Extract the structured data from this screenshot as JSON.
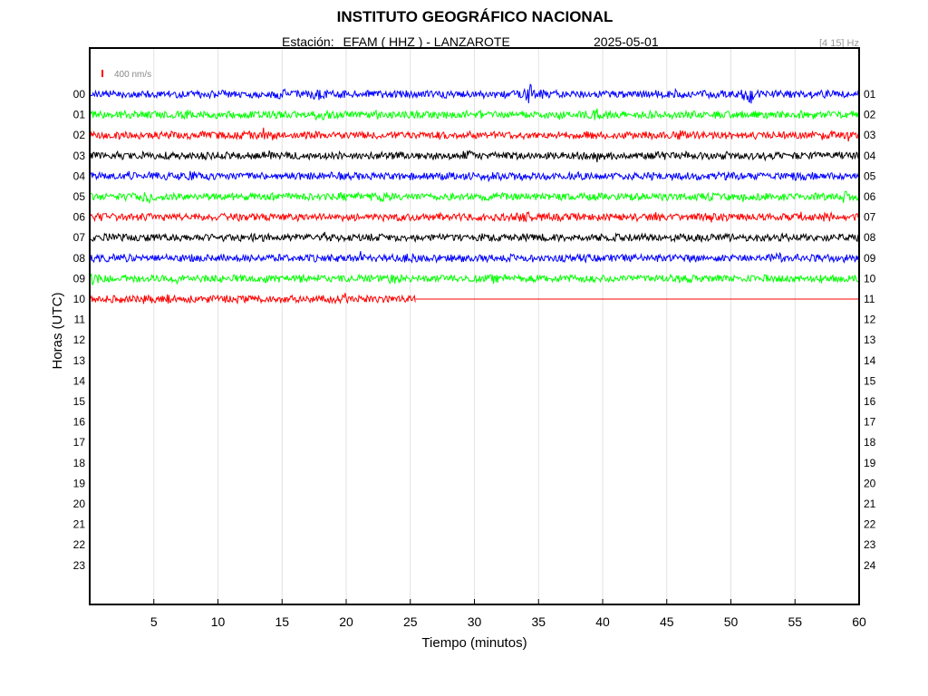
{
  "header": {
    "title": "INSTITUTO GEOGRÁFICO NACIONAL",
    "station_prefix": "Estación:",
    "station": "EFAM ( HHZ ) - LANZAROTE",
    "date": "2025-05-01",
    "filter": "[4 15] Hz"
  },
  "chart_data": {
    "type": "line",
    "title": "INSTITUTO GEOGRÁFICO NACIONAL",
    "xlabel": "Tiempo (minutos)",
    "ylabel": "Horas (UTC)",
    "xlim": [
      0,
      60
    ],
    "x_ticks": [
      5,
      10,
      15,
      20,
      25,
      30,
      35,
      40,
      45,
      50,
      55,
      60
    ],
    "left_hour_labels": [
      "00",
      "01",
      "02",
      "03",
      "04",
      "05",
      "06",
      "07",
      "08",
      "09",
      "10",
      "11",
      "12",
      "13",
      "14",
      "15",
      "16",
      "17",
      "18",
      "19",
      "20",
      "21",
      "22",
      "23"
    ],
    "right_hour_labels": [
      "01",
      "02",
      "03",
      "04",
      "05",
      "06",
      "07",
      "08",
      "09",
      "10",
      "11",
      "12",
      "13",
      "14",
      "15",
      "16",
      "17",
      "18",
      "19",
      "20",
      "21",
      "22",
      "23",
      "24"
    ],
    "scale_bar": {
      "label": "400 nm/s",
      "color": "#ff0000"
    },
    "grid": true,
    "trace_color_cycle": [
      "#0000ff",
      "#00ff00",
      "#ff0000",
      "#000000"
    ],
    "series": [
      {
        "hour": "00",
        "color": "#0000ff",
        "recorded_until_min": 60,
        "bursts": [
          {
            "t": 15,
            "a": 1.6
          },
          {
            "t": 17.8,
            "a": 1.8
          },
          {
            "t": 34.3,
            "a": 2.8
          },
          {
            "t": 51.3,
            "a": 2.2
          }
        ]
      },
      {
        "hour": "01",
        "color": "#00ff00",
        "recorded_until_min": 60,
        "bursts": [
          {
            "t": 18,
            "a": 1.6
          },
          {
            "t": 39.5,
            "a": 2.0
          },
          {
            "t": 7.5,
            "a": 1.3
          }
        ]
      },
      {
        "hour": "02",
        "color": "#ff0000",
        "recorded_until_min": 60,
        "bursts": [
          {
            "t": 14,
            "a": 1.5
          },
          {
            "t": 46,
            "a": 1.4
          },
          {
            "t": 57.5,
            "a": 1.4
          }
        ]
      },
      {
        "hour": "03",
        "color": "#000000",
        "recorded_until_min": 60,
        "bursts": [
          {
            "t": 29.5,
            "a": 1.5
          },
          {
            "t": 44.5,
            "a": 1.4
          }
        ]
      },
      {
        "hour": "04",
        "color": "#0000ff",
        "recorded_until_min": 60,
        "bursts": [
          {
            "t": 7.8,
            "a": 1.6
          },
          {
            "t": 55,
            "a": 1.3
          }
        ]
      },
      {
        "hour": "05",
        "color": "#00ff00",
        "recorded_until_min": 60,
        "bursts": [
          {
            "t": 4.5,
            "a": 2.0
          },
          {
            "t": 23,
            "a": 1.6
          },
          {
            "t": 59,
            "a": 1.8
          }
        ]
      },
      {
        "hour": "06",
        "color": "#ff0000",
        "recorded_until_min": 60,
        "bursts": [
          {
            "t": 1,
            "a": 1.3
          },
          {
            "t": 34,
            "a": 2.0
          },
          {
            "t": 57.5,
            "a": 1.4
          }
        ]
      },
      {
        "hour": "07",
        "color": "#000000",
        "recorded_until_min": 60,
        "bursts": [
          {
            "t": 13,
            "a": 1.2
          },
          {
            "t": 42.5,
            "a": 1.2
          }
        ]
      },
      {
        "hour": "08",
        "color": "#0000ff",
        "recorded_until_min": 60,
        "bursts": [
          {
            "t": 25,
            "a": 1.5
          },
          {
            "t": 53.5,
            "a": 1.6
          },
          {
            "t": 59,
            "a": 1.4
          }
        ]
      },
      {
        "hour": "09",
        "color": "#00ff00",
        "recorded_until_min": 60,
        "bursts": [
          {
            "t": 0.2,
            "a": 1.8
          },
          {
            "t": 7,
            "a": 1.6
          },
          {
            "t": 23.5,
            "a": 1.4
          }
        ]
      },
      {
        "hour": "10",
        "color": "#ff0000",
        "recorded_until_min": 25.4,
        "bursts": [
          {
            "t": 6,
            "a": 1.4
          }
        ]
      }
    ]
  }
}
